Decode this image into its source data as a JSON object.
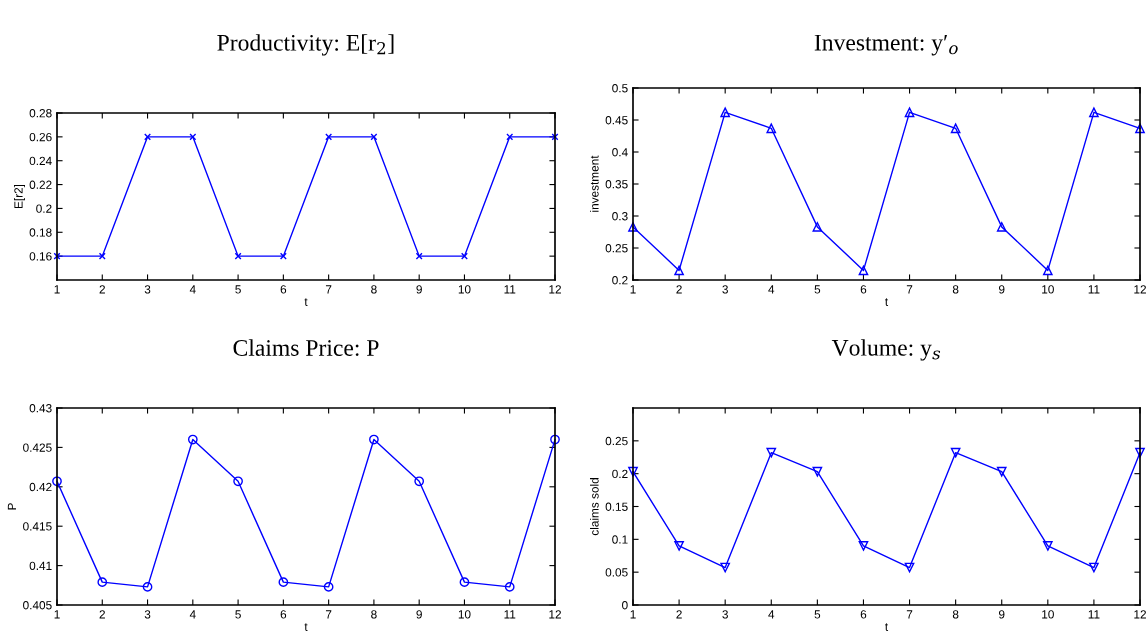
{
  "chart_data": [
    {
      "type": "line",
      "title": "Productivity: E[r$_{2}$]",
      "xlabel": "t",
      "ylabel": "E[r2]",
      "x": [
        1,
        2,
        3,
        4,
        5,
        6,
        7,
        8,
        9,
        10,
        11,
        12
      ],
      "series": [
        {
          "color": "#0000ff",
          "values": [
            0.16,
            0.16,
            0.26,
            0.26,
            0.16,
            0.16,
            0.26,
            0.26,
            0.16,
            0.16,
            0.26,
            0.26
          ]
        }
      ],
      "xlim": [
        1,
        12
      ],
      "xticks": [
        1,
        2,
        3,
        4,
        5,
        6,
        7,
        8,
        9,
        10,
        11,
        12
      ],
      "ylim": [
        0.14,
        0.28
      ],
      "yticks": [
        0.16,
        0.18,
        0.2,
        0.22,
        0.24,
        0.26,
        0.28
      ],
      "marker": "cross",
      "grid": false,
      "legend": false
    },
    {
      "type": "line",
      "title": "Investment: y′$_{o}$",
      "xlabel": "t",
      "ylabel": "investment",
      "x": [
        1,
        2,
        3,
        4,
        5,
        6,
        7,
        8,
        9,
        10,
        11,
        12
      ],
      "series": [
        {
          "color": "#0000ff",
          "values": [
            0.283,
            0.215,
            0.462,
            0.437,
            0.283,
            0.215,
            0.462,
            0.437,
            0.283,
            0.215,
            0.462,
            0.437
          ]
        }
      ],
      "xlim": [
        1,
        12
      ],
      "xticks": [
        1,
        2,
        3,
        4,
        5,
        6,
        7,
        8,
        9,
        10,
        11,
        12
      ],
      "ylim": [
        0.2,
        0.5
      ],
      "yticks": [
        0.2,
        0.25,
        0.3,
        0.35,
        0.4,
        0.45,
        0.5
      ],
      "marker": "triangle",
      "grid": false,
      "legend": false
    },
    {
      "type": "line",
      "title": "Claims Price: P",
      "xlabel": "t",
      "ylabel": "P",
      "x": [
        1,
        2,
        3,
        4,
        5,
        6,
        7,
        8,
        9,
        10,
        11,
        12
      ],
      "series": [
        {
          "color": "#0000ff",
          "values": [
            0.4207,
            0.4079,
            0.4073,
            0.426,
            0.4207,
            0.4079,
            0.4073,
            0.426,
            0.4207,
            0.4079,
            0.4073,
            0.426
          ]
        }
      ],
      "xlim": [
        1,
        12
      ],
      "xticks": [
        1,
        2,
        3,
        4,
        5,
        6,
        7,
        8,
        9,
        10,
        11,
        12
      ],
      "ylim": [
        0.405,
        0.43
      ],
      "yticks": [
        0.405,
        0.41,
        0.415,
        0.42,
        0.425,
        0.43
      ],
      "marker": "circle",
      "grid": false,
      "legend": false
    },
    {
      "type": "line",
      "title": "Volume: y$_{s}$",
      "xlabel": "t",
      "ylabel": "claims sold",
      "x": [
        1,
        2,
        3,
        4,
        5,
        6,
        7,
        8,
        9,
        10,
        11,
        12
      ],
      "series": [
        {
          "color": "#0000ff",
          "values": [
            0.203,
            0.09,
            0.057,
            0.232,
            0.203,
            0.09,
            0.057,
            0.232,
            0.203,
            0.09,
            0.057,
            0.232
          ]
        }
      ],
      "xlim": [
        1,
        12
      ],
      "xticks": [
        1,
        2,
        3,
        4,
        5,
        6,
        7,
        8,
        9,
        10,
        11,
        12
      ],
      "ylim": [
        0,
        0.3
      ],
      "yticks": [
        0,
        0.05,
        0.1,
        0.15,
        0.2,
        0.25
      ],
      "marker": "triangle_down",
      "grid": false,
      "legend": false
    }
  ]
}
